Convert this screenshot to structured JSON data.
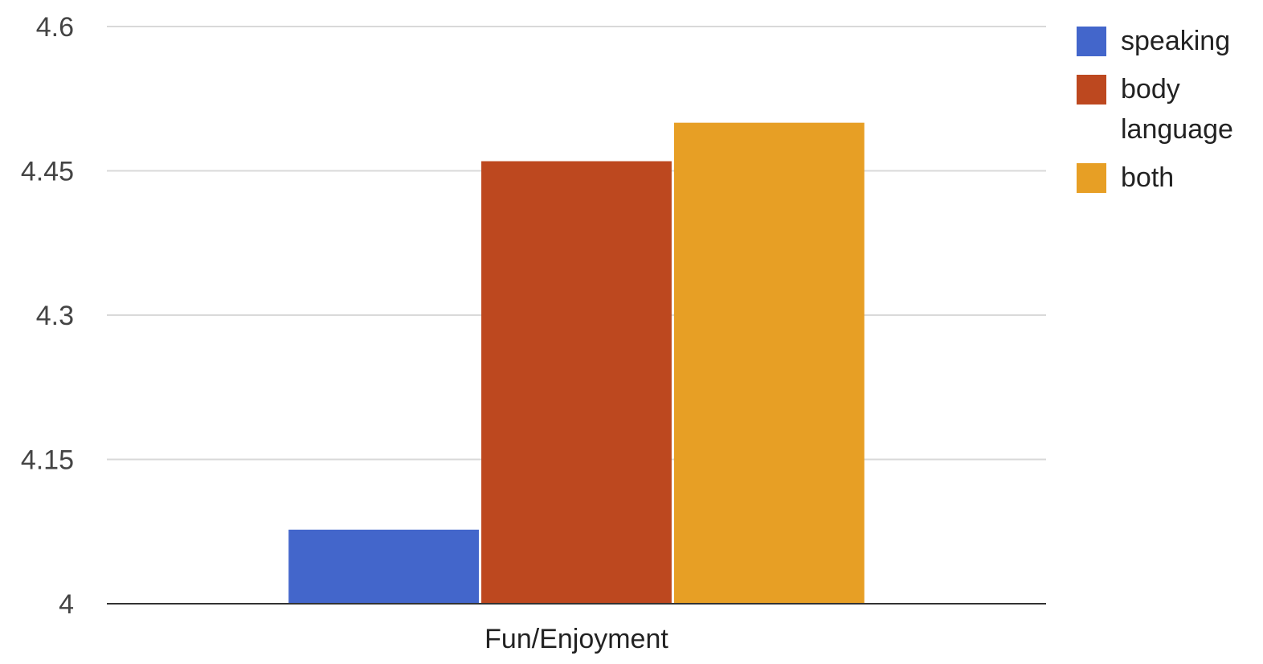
{
  "chart_data": {
    "type": "bar",
    "categories": [
      "Fun/Enjoyment"
    ],
    "series": [
      {
        "name": "speaking",
        "values": [
          4.077
        ],
        "color": "#4366CB"
      },
      {
        "name": "body language",
        "values": [
          4.46
        ],
        "color": "#BD481F"
      },
      {
        "name": "both",
        "values": [
          4.5
        ],
        "color": "#E79F25"
      }
    ],
    "yticks": [
      "4",
      "4.15",
      "4.3",
      "4.45",
      "4.6"
    ],
    "ylim": [
      4,
      4.6
    ],
    "grid": true,
    "legend_position": "right",
    "legend_labels": [
      [
        "speaking"
      ],
      [
        "body",
        "language"
      ],
      [
        "both"
      ]
    ],
    "colors": {
      "gridline": "#d9d9d9",
      "baseline": "#333333"
    }
  }
}
